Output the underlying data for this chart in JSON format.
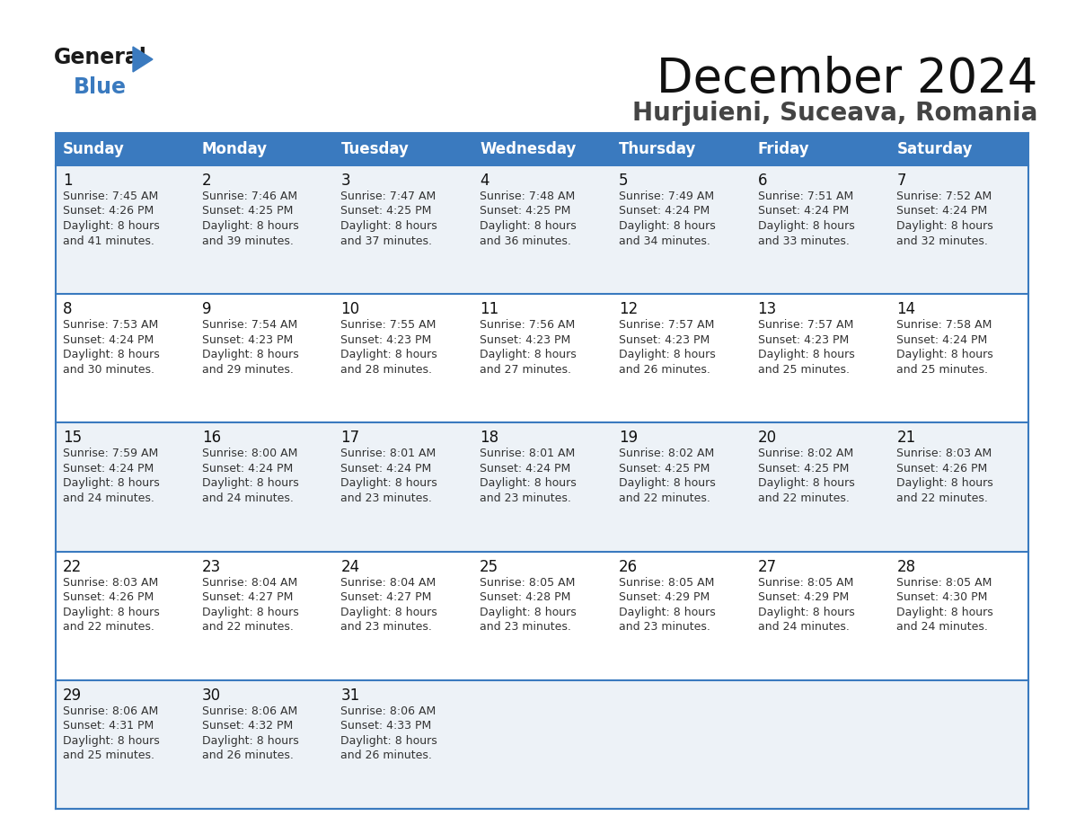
{
  "title": "December 2024",
  "subtitle": "Hurjuieni, Suceava, Romania",
  "days_of_week": [
    "Sunday",
    "Monday",
    "Tuesday",
    "Wednesday",
    "Thursday",
    "Friday",
    "Saturday"
  ],
  "header_bg": "#3a7abf",
  "header_text": "#ffffff",
  "row_bg_odd": "#edf2f7",
  "row_bg_even": "#ffffff",
  "cell_text_color": "#333333",
  "day_num_color": "#111111",
  "border_color": "#3a7abf",
  "calendar_data": [
    [
      {
        "day": 1,
        "sunrise": "7:45 AM",
        "sunset": "4:26 PM",
        "dl1": "Daylight: 8 hours",
        "dl2": "and 41 minutes."
      },
      {
        "day": 2,
        "sunrise": "7:46 AM",
        "sunset": "4:25 PM",
        "dl1": "Daylight: 8 hours",
        "dl2": "and 39 minutes."
      },
      {
        "day": 3,
        "sunrise": "7:47 AM",
        "sunset": "4:25 PM",
        "dl1": "Daylight: 8 hours",
        "dl2": "and 37 minutes."
      },
      {
        "day": 4,
        "sunrise": "7:48 AM",
        "sunset": "4:25 PM",
        "dl1": "Daylight: 8 hours",
        "dl2": "and 36 minutes."
      },
      {
        "day": 5,
        "sunrise": "7:49 AM",
        "sunset": "4:24 PM",
        "dl1": "Daylight: 8 hours",
        "dl2": "and 34 minutes."
      },
      {
        "day": 6,
        "sunrise": "7:51 AM",
        "sunset": "4:24 PM",
        "dl1": "Daylight: 8 hours",
        "dl2": "and 33 minutes."
      },
      {
        "day": 7,
        "sunrise": "7:52 AM",
        "sunset": "4:24 PM",
        "dl1": "Daylight: 8 hours",
        "dl2": "and 32 minutes."
      }
    ],
    [
      {
        "day": 8,
        "sunrise": "7:53 AM",
        "sunset": "4:24 PM",
        "dl1": "Daylight: 8 hours",
        "dl2": "and 30 minutes."
      },
      {
        "day": 9,
        "sunrise": "7:54 AM",
        "sunset": "4:23 PM",
        "dl1": "Daylight: 8 hours",
        "dl2": "and 29 minutes."
      },
      {
        "day": 10,
        "sunrise": "7:55 AM",
        "sunset": "4:23 PM",
        "dl1": "Daylight: 8 hours",
        "dl2": "and 28 minutes."
      },
      {
        "day": 11,
        "sunrise": "7:56 AM",
        "sunset": "4:23 PM",
        "dl1": "Daylight: 8 hours",
        "dl2": "and 27 minutes."
      },
      {
        "day": 12,
        "sunrise": "7:57 AM",
        "sunset": "4:23 PM",
        "dl1": "Daylight: 8 hours",
        "dl2": "and 26 minutes."
      },
      {
        "day": 13,
        "sunrise": "7:57 AM",
        "sunset": "4:23 PM",
        "dl1": "Daylight: 8 hours",
        "dl2": "and 25 minutes."
      },
      {
        "day": 14,
        "sunrise": "7:58 AM",
        "sunset": "4:24 PM",
        "dl1": "Daylight: 8 hours",
        "dl2": "and 25 minutes."
      }
    ],
    [
      {
        "day": 15,
        "sunrise": "7:59 AM",
        "sunset": "4:24 PM",
        "dl1": "Daylight: 8 hours",
        "dl2": "and 24 minutes."
      },
      {
        "day": 16,
        "sunrise": "8:00 AM",
        "sunset": "4:24 PM",
        "dl1": "Daylight: 8 hours",
        "dl2": "and 24 minutes."
      },
      {
        "day": 17,
        "sunrise": "8:01 AM",
        "sunset": "4:24 PM",
        "dl1": "Daylight: 8 hours",
        "dl2": "and 23 minutes."
      },
      {
        "day": 18,
        "sunrise": "8:01 AM",
        "sunset": "4:24 PM",
        "dl1": "Daylight: 8 hours",
        "dl2": "and 23 minutes."
      },
      {
        "day": 19,
        "sunrise": "8:02 AM",
        "sunset": "4:25 PM",
        "dl1": "Daylight: 8 hours",
        "dl2": "and 22 minutes."
      },
      {
        "day": 20,
        "sunrise": "8:02 AM",
        "sunset": "4:25 PM",
        "dl1": "Daylight: 8 hours",
        "dl2": "and 22 minutes."
      },
      {
        "day": 21,
        "sunrise": "8:03 AM",
        "sunset": "4:26 PM",
        "dl1": "Daylight: 8 hours",
        "dl2": "and 22 minutes."
      }
    ],
    [
      {
        "day": 22,
        "sunrise": "8:03 AM",
        "sunset": "4:26 PM",
        "dl1": "Daylight: 8 hours",
        "dl2": "and 22 minutes."
      },
      {
        "day": 23,
        "sunrise": "8:04 AM",
        "sunset": "4:27 PM",
        "dl1": "Daylight: 8 hours",
        "dl2": "and 22 minutes."
      },
      {
        "day": 24,
        "sunrise": "8:04 AM",
        "sunset": "4:27 PM",
        "dl1": "Daylight: 8 hours",
        "dl2": "and 23 minutes."
      },
      {
        "day": 25,
        "sunrise": "8:05 AM",
        "sunset": "4:28 PM",
        "dl1": "Daylight: 8 hours",
        "dl2": "and 23 minutes."
      },
      {
        "day": 26,
        "sunrise": "8:05 AM",
        "sunset": "4:29 PM",
        "dl1": "Daylight: 8 hours",
        "dl2": "and 23 minutes."
      },
      {
        "day": 27,
        "sunrise": "8:05 AM",
        "sunset": "4:29 PM",
        "dl1": "Daylight: 8 hours",
        "dl2": "and 24 minutes."
      },
      {
        "day": 28,
        "sunrise": "8:05 AM",
        "sunset": "4:30 PM",
        "dl1": "Daylight: 8 hours",
        "dl2": "and 24 minutes."
      }
    ],
    [
      {
        "day": 29,
        "sunrise": "8:06 AM",
        "sunset": "4:31 PM",
        "dl1": "Daylight: 8 hours",
        "dl2": "and 25 minutes."
      },
      {
        "day": 30,
        "sunrise": "8:06 AM",
        "sunset": "4:32 PM",
        "dl1": "Daylight: 8 hours",
        "dl2": "and 26 minutes."
      },
      {
        "day": 31,
        "sunrise": "8:06 AM",
        "sunset": "4:33 PM",
        "dl1": "Daylight: 8 hours",
        "dl2": "and 26 minutes."
      },
      null,
      null,
      null,
      null
    ]
  ]
}
